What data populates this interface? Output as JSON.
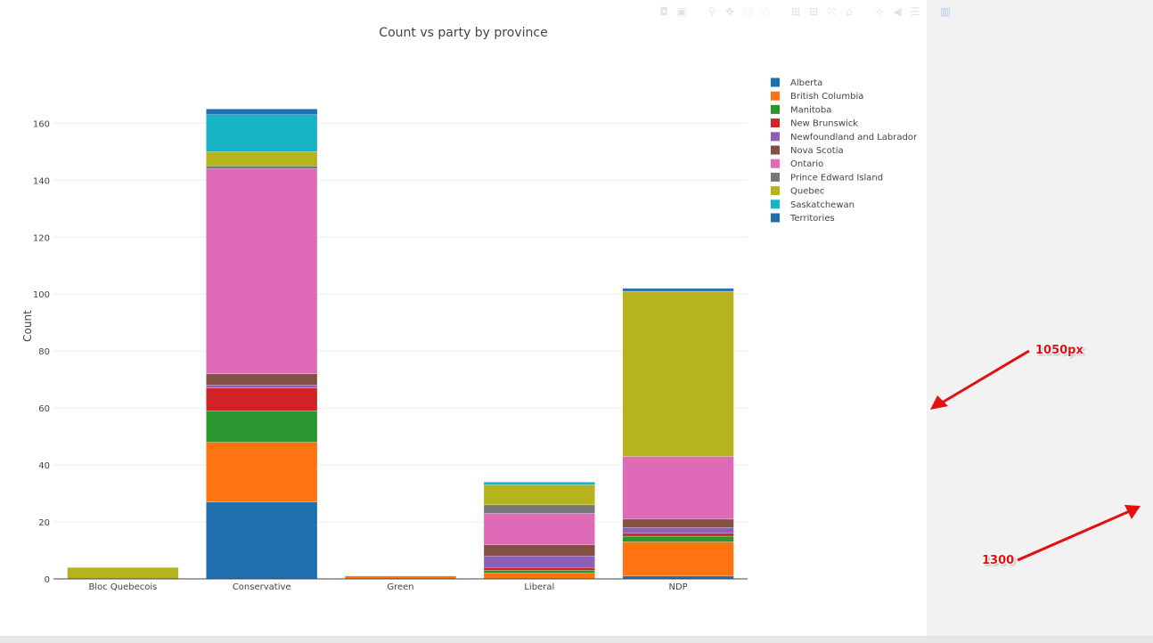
{
  "modebar": {
    "icons": [
      "camera-icon",
      "save-icon",
      "zoom-icon",
      "pan-icon",
      "box-select-icon",
      "lasso-icon",
      "zoom-in-icon",
      "zoom-out-icon",
      "autoscale-icon",
      "reset-axes-icon",
      "spike-lines-icon",
      "hover-closest-icon",
      "hover-compare-icon",
      "plotly-logo-icon"
    ]
  },
  "annotations": {
    "width_label": "1050px",
    "total_label": "1300"
  },
  "chart_data": {
    "type": "bar",
    "barmode": "stack",
    "title": "Count vs party by province",
    "xlabel": "",
    "ylabel": "Count",
    "ylim": [
      0,
      172
    ],
    "yticks": [
      0,
      20,
      40,
      60,
      80,
      100,
      120,
      140,
      160
    ],
    "grid": true,
    "legend_position": "right",
    "categories": [
      "Bloc Quebecois",
      "Conservative",
      "Green",
      "Liberal",
      "NDP"
    ],
    "series": [
      {
        "name": "Alberta",
        "color": "#1f6eb0",
        "values": [
          0,
          27,
          0,
          0,
          1
        ]
      },
      {
        "name": "British Columbia",
        "color": "#ff7311",
        "values": [
          0,
          21,
          1,
          2,
          12
        ]
      },
      {
        "name": "Manitoba",
        "color": "#2a9630",
        "values": [
          0,
          11,
          0,
          1,
          2
        ]
      },
      {
        "name": "New Brunswick",
        "color": "#d12327",
        "values": [
          0,
          8,
          0,
          1,
          1
        ]
      },
      {
        "name": "Newfoundland and Labrador",
        "color": "#8e5fb9",
        "values": [
          0,
          1,
          0,
          4,
          2
        ]
      },
      {
        "name": "Nova Scotia",
        "color": "#845046",
        "values": [
          0,
          4,
          0,
          4,
          3
        ]
      },
      {
        "name": "Ontario",
        "color": "#df6bb8",
        "values": [
          0,
          72,
          0,
          11,
          22
        ]
      },
      {
        "name": "Prince Edward Island",
        "color": "#777777",
        "values": [
          0,
          1,
          0,
          3,
          0
        ]
      },
      {
        "name": "Quebec",
        "color": "#b5b41f",
        "values": [
          4,
          5,
          0,
          7,
          58
        ]
      },
      {
        "name": "Saskatchewan",
        "color": "#17b4c7",
        "values": [
          0,
          13,
          0,
          1,
          0
        ]
      },
      {
        "name": "Territories",
        "color": "#1f6eb0",
        "values": [
          0,
          2,
          0,
          0,
          1
        ]
      }
    ]
  }
}
